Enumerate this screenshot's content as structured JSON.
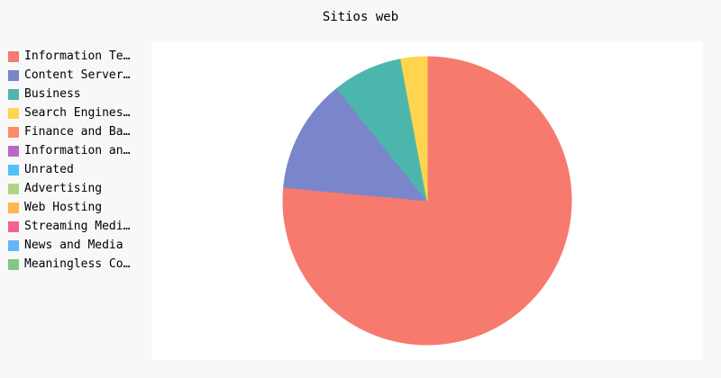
{
  "chart_data": {
    "type": "pie",
    "title": "Sitios web",
    "legend_position": "left",
    "series": [
      {
        "name": "Information Te…",
        "value": 78,
        "color": "#F77A6E"
      },
      {
        "name": "Content Server…",
        "value": 13,
        "color": "#7A85CC"
      },
      {
        "name": "Business",
        "value": 8,
        "color": "#4DB6AC"
      },
      {
        "name": "Search Engines…",
        "value": 3,
        "color": "#FFD54F"
      },
      {
        "name": "Finance and Ba…",
        "value": 0,
        "color": "#FF8A65"
      },
      {
        "name": "Information an…",
        "value": 0,
        "color": "#BA68C8"
      },
      {
        "name": "Unrated",
        "value": 0,
        "color": "#4FC3F7"
      },
      {
        "name": "Advertising",
        "value": 0,
        "color": "#AED581"
      },
      {
        "name": "Web Hosting",
        "value": 0,
        "color": "#FFB74D"
      },
      {
        "name": "Streaming Medi…",
        "value": 0,
        "color": "#F06292"
      },
      {
        "name": "News and Media",
        "value": 0,
        "color": "#64B5F6"
      },
      {
        "name": "Meaningless Co…",
        "value": 0,
        "color": "#81C784"
      }
    ]
  }
}
